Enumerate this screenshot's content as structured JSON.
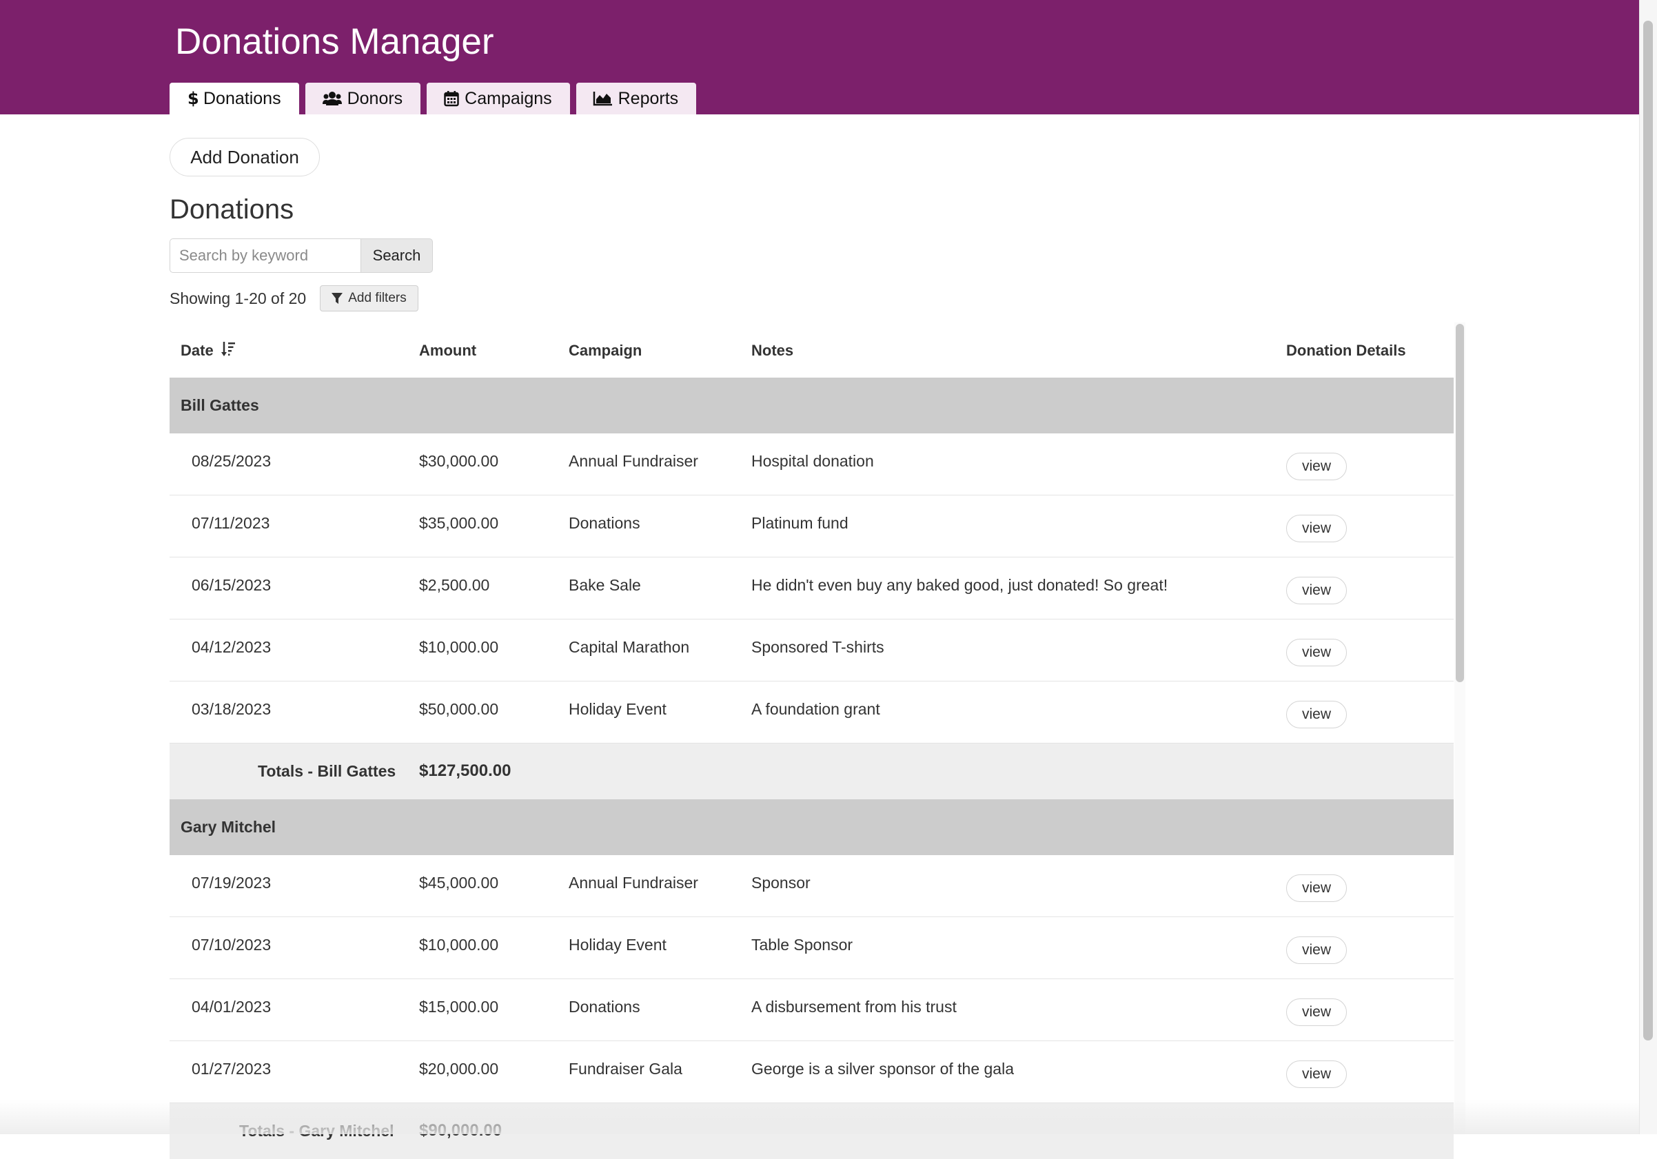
{
  "header": {
    "title": "Donations Manager"
  },
  "tabs": [
    {
      "label": "Donations",
      "icon": "dollar-icon",
      "active": true
    },
    {
      "label": "Donors",
      "icon": "users-icon",
      "active": false
    },
    {
      "label": "Campaigns",
      "icon": "calendar-icon",
      "active": false
    },
    {
      "label": "Reports",
      "icon": "area-chart-icon",
      "active": false
    }
  ],
  "toolbar": {
    "add_label": "Add Donation"
  },
  "section": {
    "title": "Donations"
  },
  "search": {
    "placeholder": "Search by keyword",
    "value": "",
    "button_label": "Search"
  },
  "pagination": {
    "showing": "Showing 1-20 of 20"
  },
  "filters": {
    "label": "Add filters"
  },
  "table": {
    "columns": [
      "Date",
      "Amount",
      "Campaign",
      "Notes",
      "Donation Details"
    ],
    "sort_column": "Date",
    "view_label": "view",
    "groups": [
      {
        "name": "Bill Gattes",
        "rows": [
          {
            "date": "08/25/2023",
            "amount": "$30,000.00",
            "campaign": "Annual Fundraiser",
            "notes": "Hospital donation"
          },
          {
            "date": "07/11/2023",
            "amount": "$35,000.00",
            "campaign": "Donations",
            "notes": "Platinum fund"
          },
          {
            "date": "06/15/2023",
            "amount": "$2,500.00",
            "campaign": "Bake Sale",
            "notes": "He didn't even buy any baked good, just donated! So great!"
          },
          {
            "date": "04/12/2023",
            "amount": "$10,000.00",
            "campaign": "Capital Marathon",
            "notes": "Sponsored T-shirts"
          },
          {
            "date": "03/18/2023",
            "amount": "$50,000.00",
            "campaign": "Holiday Event",
            "notes": "A foundation grant"
          }
        ],
        "total_label": "Totals - Bill Gattes",
        "total_amount": "$127,500.00"
      },
      {
        "name": "Gary Mitchel",
        "rows": [
          {
            "date": "07/19/2023",
            "amount": "$45,000.00",
            "campaign": "Annual Fundraiser",
            "notes": "Sponsor"
          },
          {
            "date": "07/10/2023",
            "amount": "$10,000.00",
            "campaign": "Holiday Event",
            "notes": "Table Sponsor"
          },
          {
            "date": "04/01/2023",
            "amount": "$15,000.00",
            "campaign": "Donations",
            "notes": "A disbursement from his trust"
          },
          {
            "date": "01/27/2023",
            "amount": "$20,000.00",
            "campaign": "Fundraiser Gala",
            "notes": "George is a silver sponsor of the gala"
          }
        ],
        "total_label": "Totals - Gary Mitchel",
        "total_amount": "$90,000.00"
      }
    ]
  },
  "colors": {
    "header_bg": "#7c206b",
    "tab_bg": "#f4e8f2",
    "group_bg": "#cccccc",
    "total_bg": "#eeeeee"
  }
}
